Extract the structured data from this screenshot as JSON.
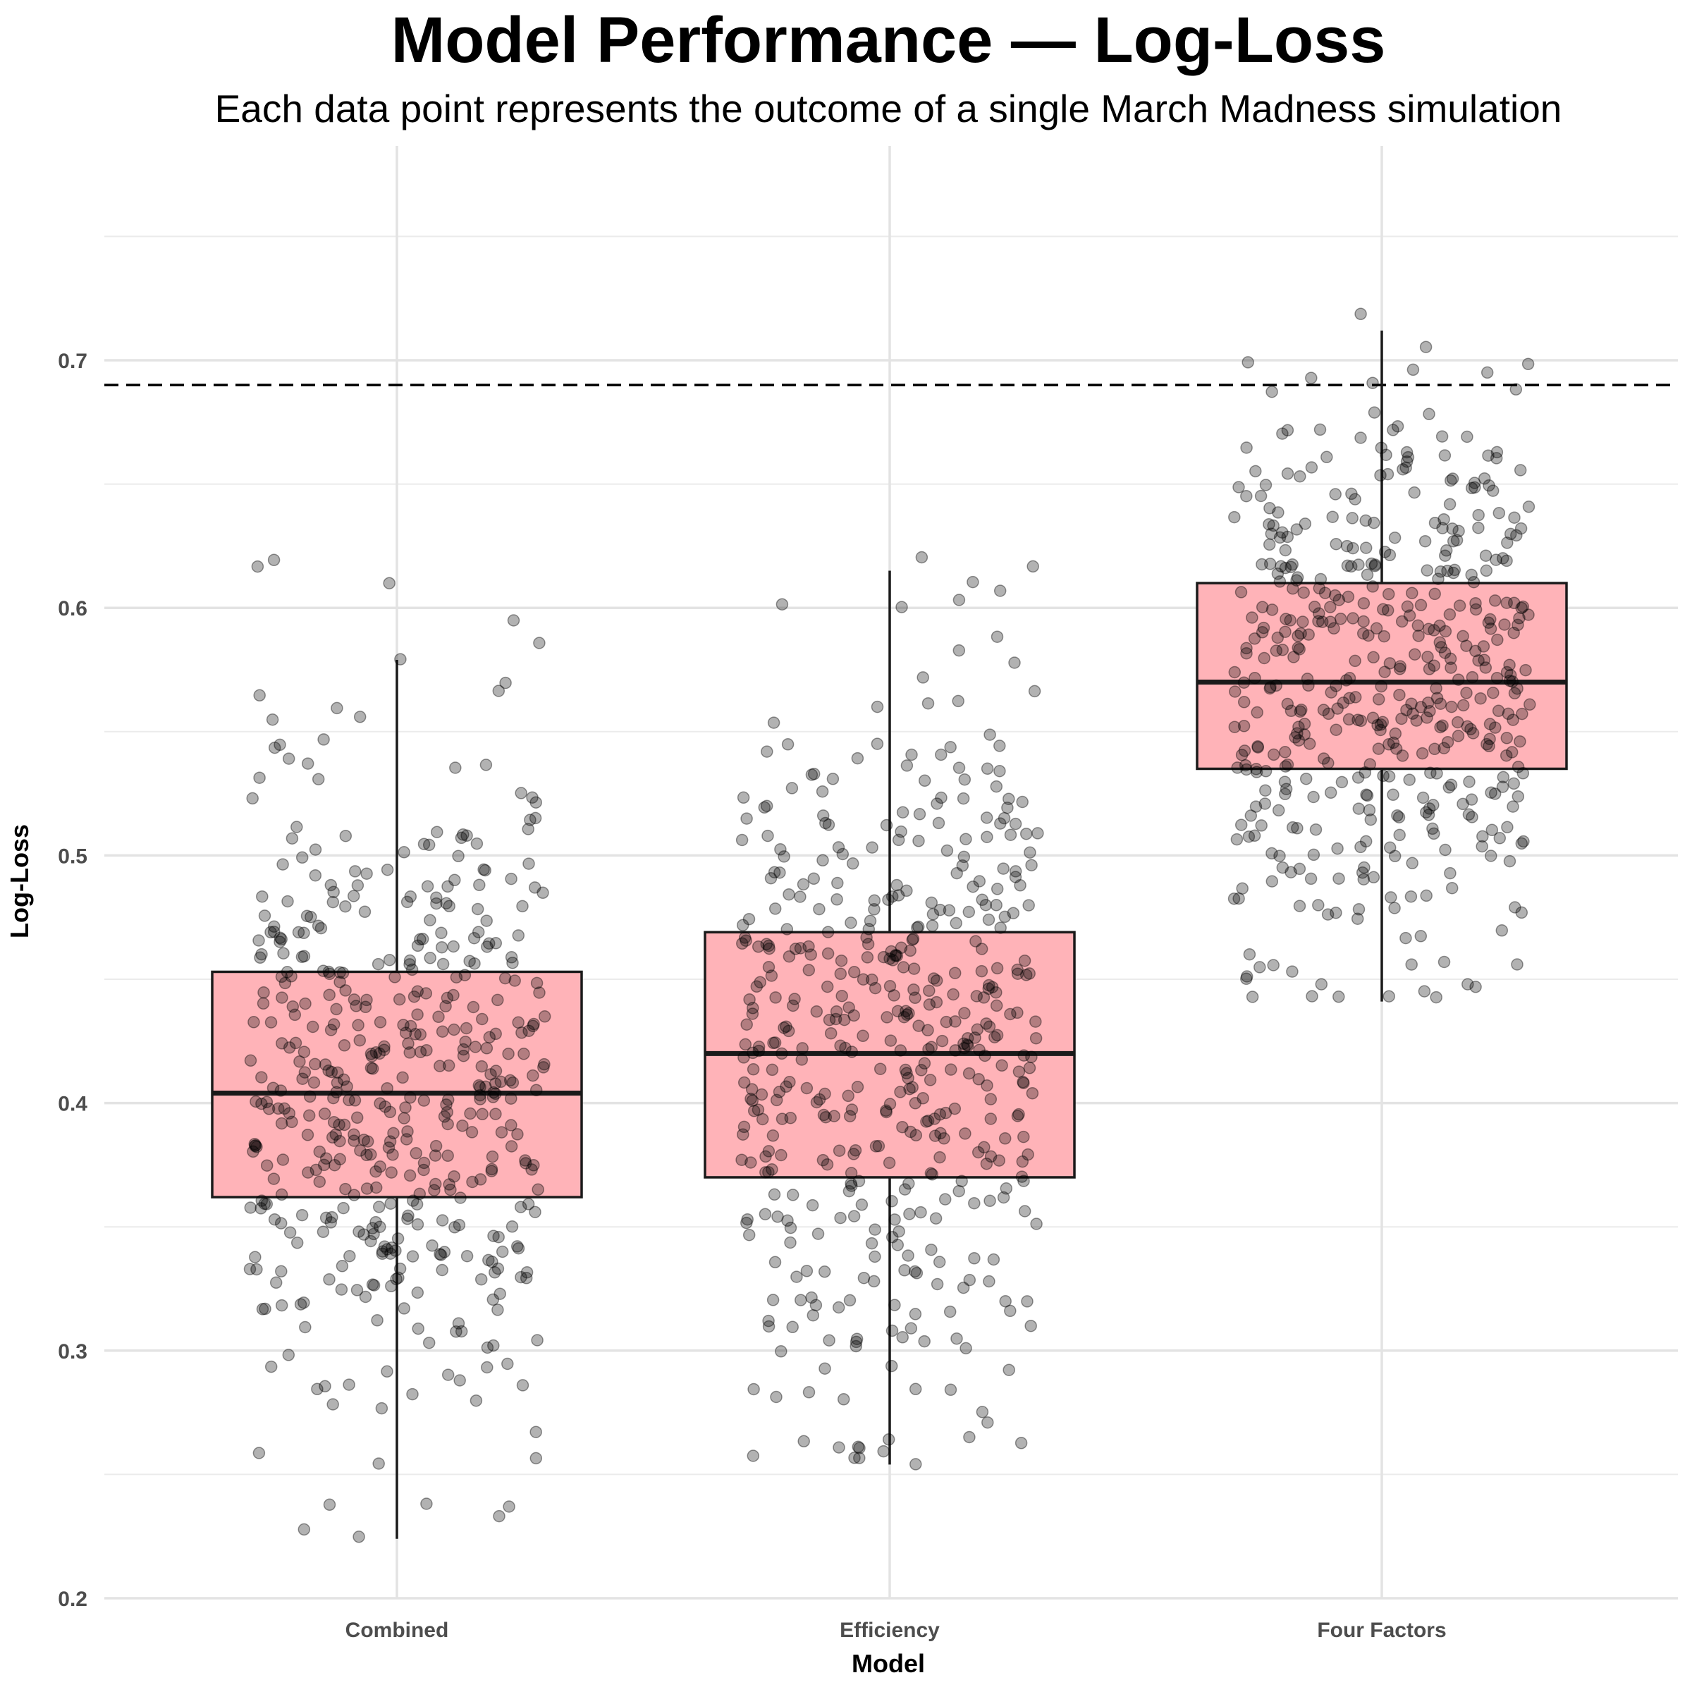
{
  "chart_data": {
    "type": "boxplot",
    "title": "Model Performance — Log-Loss",
    "subtitle": "Each data point represents the outcome of a single March Madness simulation",
    "xlabel": "Model",
    "ylabel": "Log-Loss",
    "categories": [
      "Combined",
      "Efficiency",
      "Four Factors"
    ],
    "ylim": [
      0.2,
      0.77
    ],
    "yticks": [
      "0.2",
      "0.3",
      "0.4",
      "0.5",
      "0.6",
      "0.7"
    ],
    "reference_line": 0.69,
    "grid": true,
    "box_color": "#ffb3b8",
    "point_color": "#000000",
    "boxes": [
      {
        "name": "Combined",
        "min": 0.224,
        "q1": 0.362,
        "median": 0.404,
        "q3": 0.453,
        "max": 0.579,
        "points_range": [
          0.224,
          0.62
        ],
        "n_points": 480
      },
      {
        "name": "Efficiency",
        "min": 0.254,
        "q1": 0.37,
        "median": 0.42,
        "q3": 0.469,
        "max": 0.615,
        "points_range": [
          0.254,
          0.624
        ],
        "n_points": 480
      },
      {
        "name": "Four Factors",
        "min": 0.441,
        "q1": 0.535,
        "median": 0.57,
        "q3": 0.61,
        "max": 0.712,
        "points_range": [
          0.441,
          0.759
        ],
        "n_points": 480
      }
    ]
  }
}
